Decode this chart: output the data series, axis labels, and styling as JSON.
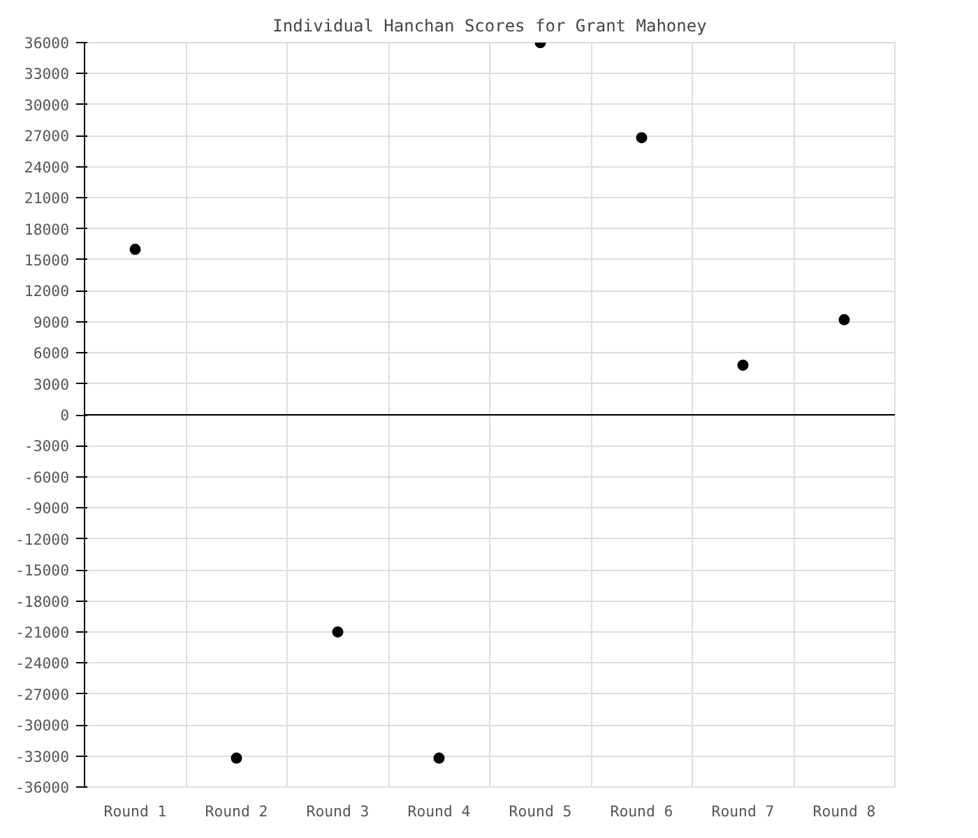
{
  "chart_data": {
    "type": "scatter",
    "title": "Individual Hanchan Scores for Grant Mahoney",
    "categories": [
      "Round 1",
      "Round 2",
      "Round 3",
      "Round 4",
      "Round 5",
      "Round 6",
      "Round 7",
      "Round 8"
    ],
    "values": [
      16000,
      -33200,
      -21000,
      -33200,
      36000,
      26800,
      4800,
      9200
    ],
    "color": "#000000",
    "marker": "circle",
    "ylim": [
      -36000,
      36000
    ],
    "yticks": [
      -36000,
      -33000,
      -30000,
      -27000,
      -24000,
      -21000,
      -18000,
      -15000,
      -12000,
      -9000,
      -6000,
      -3000,
      0,
      3000,
      6000,
      9000,
      12000,
      15000,
      18000,
      21000,
      24000,
      27000,
      30000,
      33000,
      36000
    ],
    "ref_lines": [
      {
        "axis": "y",
        "value": 0,
        "color": "#000000"
      }
    ],
    "grid": true
  }
}
